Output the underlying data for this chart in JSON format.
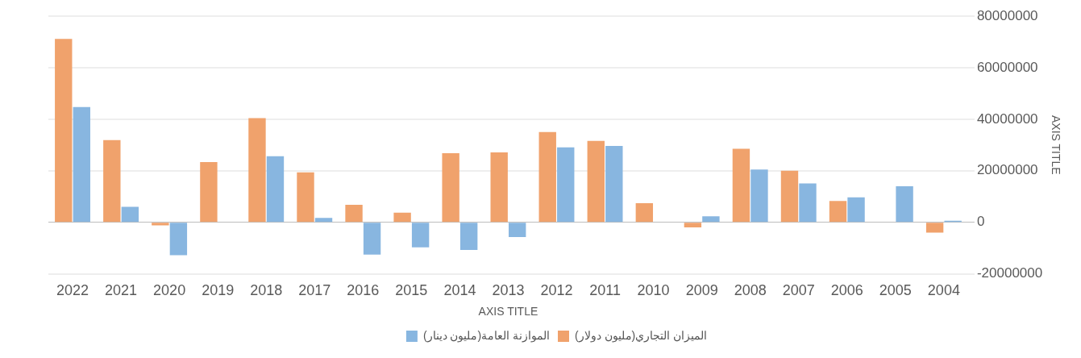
{
  "chart_data": {
    "type": "bar",
    "xlabel": "AXIS TITLE",
    "ylabel": "AXIS TITLE",
    "categories": [
      "2022",
      "2021",
      "2020",
      "2019",
      "2018",
      "2017",
      "2016",
      "2015",
      "2014",
      "2013",
      "2012",
      "2011",
      "2010",
      "2009",
      "2008",
      "2007",
      "2006",
      "2005",
      "2004"
    ],
    "series": [
      {
        "name": "الميزان التجاري(مليون دولار)",
        "color": "#f0a26c",
        "values": [
          71200000,
          31900000,
          -1200000,
          23400000,
          40400000,
          19400000,
          6800000,
          3700000,
          26800000,
          27100000,
          35000000,
          31600000,
          7400000,
          -2000000,
          28500000,
          20000000,
          8300000,
          null,
          -4000000
        ]
      },
      {
        "name": "الموازنة العامة(مليون دينار)",
        "color": "#88b6e0",
        "values": [
          44700000,
          6000000,
          -12800000,
          null,
          25600000,
          1700000,
          -12500000,
          -9700000,
          -10700000,
          -5700000,
          29100000,
          29600000,
          null,
          2300000,
          20500000,
          15100000,
          9700000,
          14000000,
          600000
        ]
      }
    ],
    "ylim": [
      -20000000,
      80000000
    ],
    "yticks": [
      -20000000,
      0,
      20000000,
      40000000,
      60000000,
      80000000
    ],
    "grid": "y",
    "legend": "bottom"
  }
}
